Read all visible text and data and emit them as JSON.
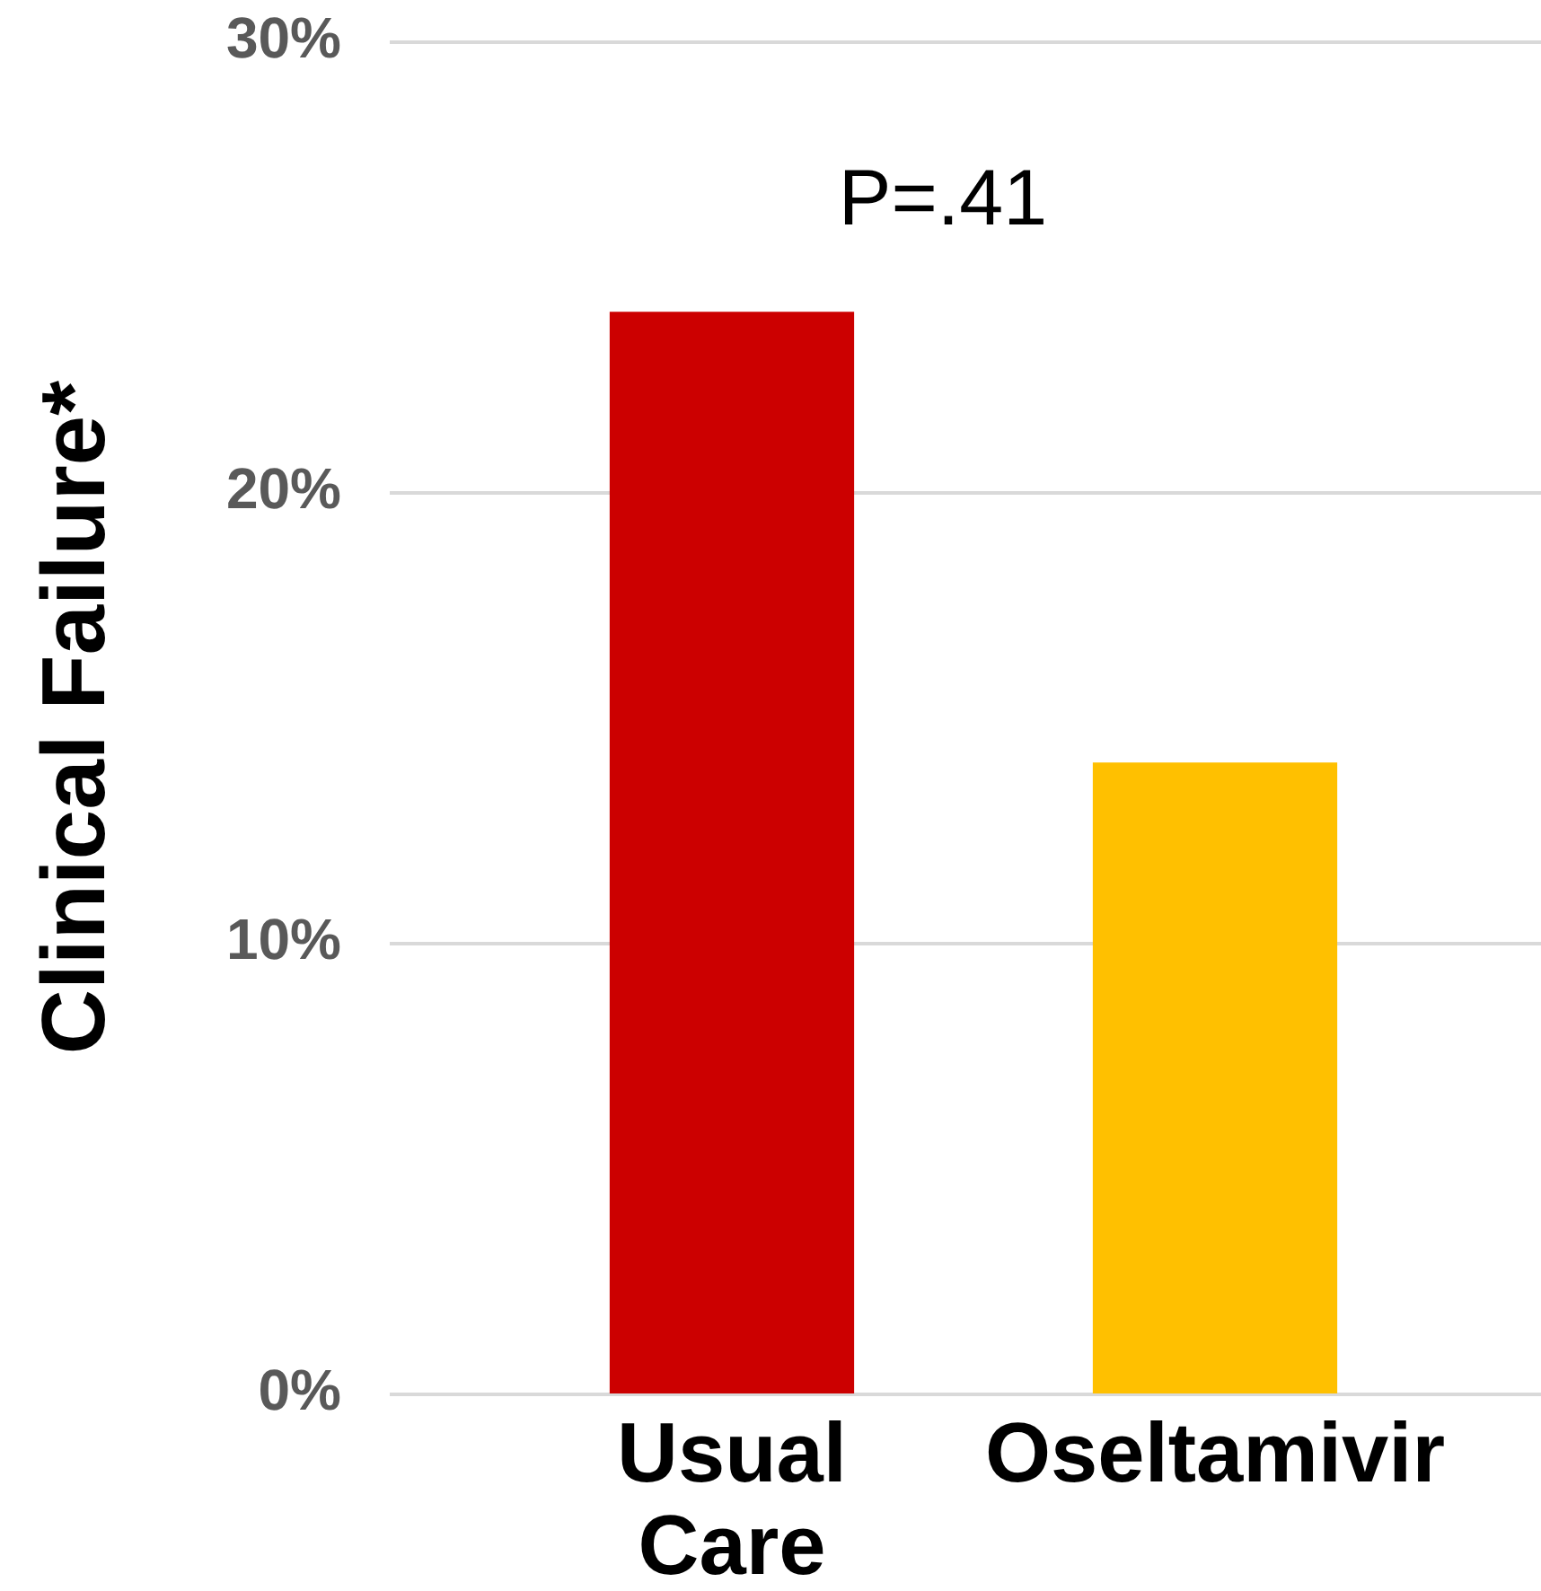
{
  "chart_data": {
    "type": "bar",
    "ylabel": "Clinical Failure*",
    "categories": [
      "Usual Care",
      "Oseltamivir"
    ],
    "values": [
      24,
      14
    ],
    "colors": [
      "#cc0000",
      "#ffc000"
    ],
    "ylim": [
      0,
      30
    ],
    "yticks": [
      {
        "value": 0,
        "label": "0%"
      },
      {
        "value": 10,
        "label": "10%"
      },
      {
        "value": 20,
        "label": "20%"
      },
      {
        "value": 30,
        "label": "30%"
      }
    ],
    "grid": "y",
    "annotations": [
      "P=.41"
    ]
  }
}
